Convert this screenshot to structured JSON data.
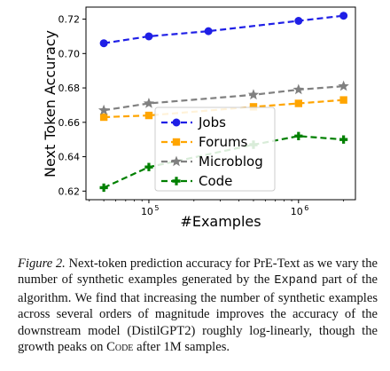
{
  "chart_data": {
    "type": "line",
    "xlabel": "#Examples",
    "ylabel": "Next Token Accuracy",
    "xscale": "log",
    "xlim": [
      38000,
      2400000
    ],
    "ylim": [
      0.615,
      0.727
    ],
    "grid": false,
    "legend_position": "center",
    "x_ticks": [
      {
        "value": 100000,
        "base": "10",
        "exp": "5"
      },
      {
        "value": 1000000,
        "base": "10",
        "exp": "6"
      }
    ],
    "y_ticks": [
      "0.62",
      "0.64",
      "0.66",
      "0.68",
      "0.70",
      "0.72"
    ],
    "series": [
      {
        "name": "Jobs",
        "color": "#1f1fe6",
        "marker": "circle",
        "x": [
          50000,
          100000,
          250000,
          1000000,
          2000000
        ],
        "y": [
          0.706,
          0.71,
          0.713,
          0.719,
          0.722
        ]
      },
      {
        "name": "Forums",
        "color": "#ffa500",
        "marker": "square",
        "x": [
          50000,
          100000,
          500000,
          1000000,
          2000000
        ],
        "y": [
          0.663,
          0.664,
          0.669,
          0.671,
          0.673
        ]
      },
      {
        "name": "Microblog",
        "color": "#808080",
        "marker": "star",
        "x": [
          50000,
          100000,
          500000,
          1000000,
          2000000
        ],
        "y": [
          0.667,
          0.671,
          0.676,
          0.679,
          0.681
        ]
      },
      {
        "name": "Code",
        "color": "#008000",
        "marker": "plus",
        "x": [
          50000,
          100000,
          500000,
          1000000,
          2000000
        ],
        "y": [
          0.622,
          0.634,
          0.647,
          0.652,
          0.65
        ]
      }
    ]
  },
  "caption": {
    "label": "Figure 2.",
    "part1": " Next-token prediction accuracy for PrE-Text as we vary the number of synthetic examples generated by the ",
    "code": "Expand",
    "part2": " part of the algorithm. We find that increasing the number of synthetic examples across several orders of magnitude improves the accuracy of the downstream model (DistilGPT2) roughly log-linearly, though the growth peaks on ",
    "smallcaps": "Code",
    "part3": " after 1M samples."
  }
}
